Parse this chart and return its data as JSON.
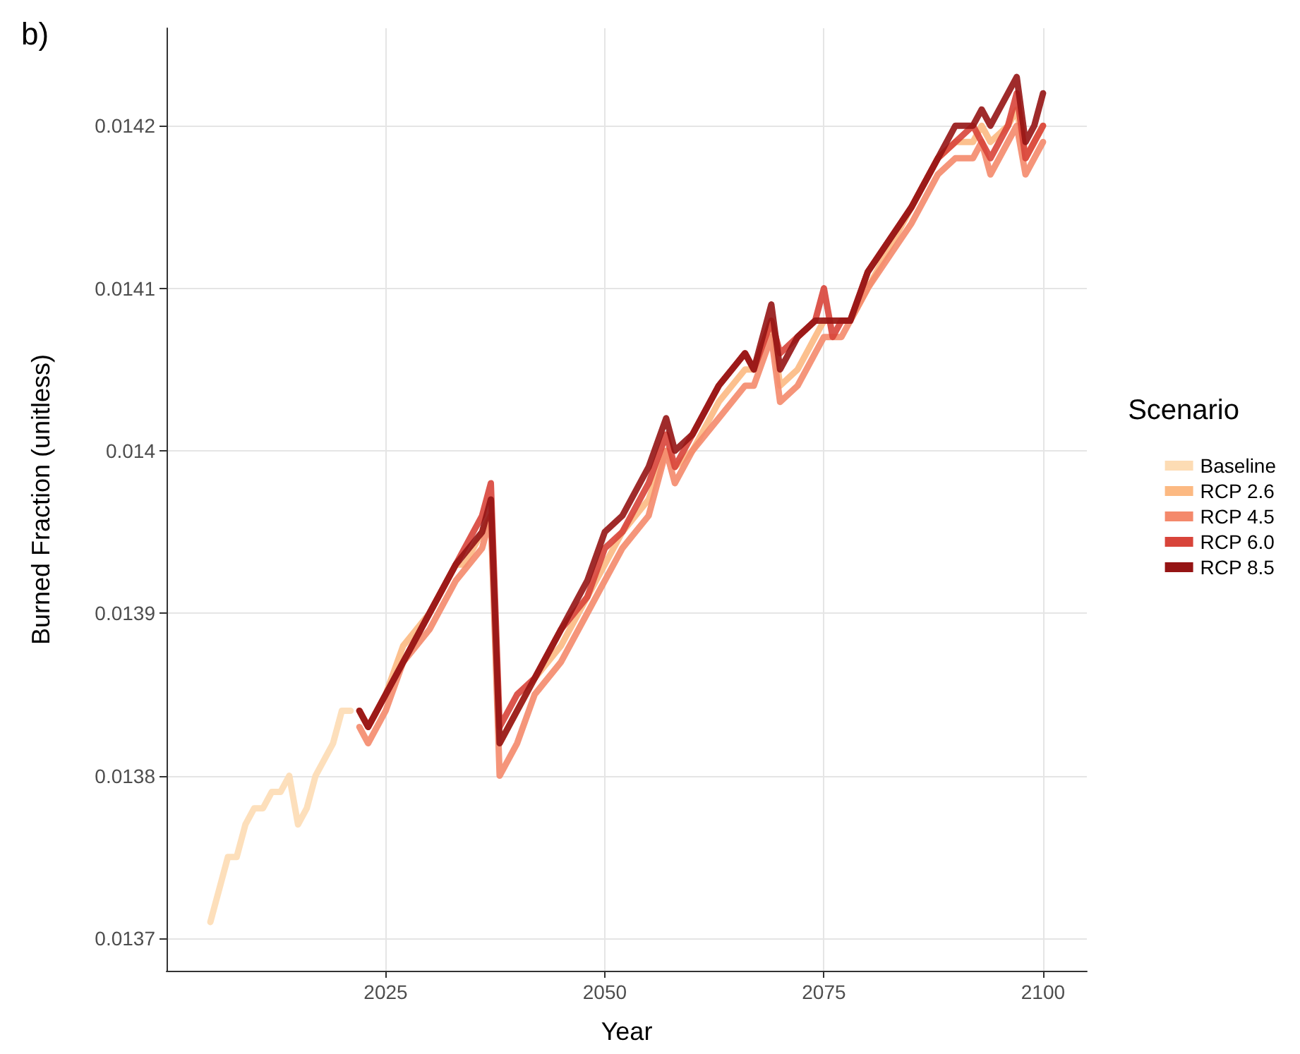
{
  "chart_data": {
    "type": "line",
    "title": "b)",
    "xlabel": "Year",
    "ylabel": "Burned Fraction (unitless)",
    "legend_title": "Scenario",
    "legend": "right",
    "grid": true,
    "marker": "none",
    "line_style": "solid",
    "xlim": [
      2000,
      2105
    ],
    "xticks": [
      2025,
      2050,
      2075,
      2100
    ],
    "ylim": [
      0.01368,
      0.01426
    ],
    "yticks": [
      0.0137,
      0.0138,
      0.0139,
      0.014,
      0.0141,
      0.0142
    ],
    "series": [
      {
        "name": "Baseline",
        "color": "#fddcb4",
        "x": [
          2005,
          2006,
          2007,
          2008,
          2009,
          2010,
          2011,
          2012,
          2013,
          2014,
          2015,
          2016,
          2017,
          2018,
          2019,
          2020,
          2021
        ],
        "values": [
          0.01371,
          0.01373,
          0.01375,
          0.01375,
          0.01377,
          0.01378,
          0.01378,
          0.01379,
          0.01379,
          0.0138,
          0.01377,
          0.01378,
          0.0138,
          0.01381,
          0.01382,
          0.01384,
          0.01384
        ]
      },
      {
        "name": "RCP 2.6",
        "color": "#fcb982",
        "x": [
          2022,
          2023,
          2025,
          2027,
          2030,
          2033,
          2034,
          2036,
          2037,
          2038,
          2040,
          2042,
          2045,
          2048,
          2050,
          2052,
          2055,
          2057,
          2058,
          2060,
          2063,
          2066,
          2067,
          2069,
          2070,
          2072,
          2074,
          2075,
          2076,
          2077,
          2078,
          2080,
          2085,
          2088,
          2090,
          2092,
          2093,
          2094,
          2096,
          2097,
          2098,
          2099,
          2100
        ],
        "values": [
          0.01384,
          0.01383,
          0.01385,
          0.01388,
          0.0139,
          0.01393,
          0.01393,
          0.01395,
          0.01396,
          0.01382,
          0.01384,
          0.01386,
          0.01388,
          0.01391,
          0.01393,
          0.01395,
          0.01397,
          0.014,
          0.01399,
          0.014,
          0.01403,
          0.01405,
          0.01405,
          0.01408,
          0.01404,
          0.01405,
          0.01407,
          0.01408,
          0.01408,
          0.01408,
          0.01408,
          0.0141,
          0.01415,
          0.01418,
          0.01419,
          0.01419,
          0.0142,
          0.01419,
          0.0142,
          0.01421,
          0.01418,
          0.01419,
          0.0142
        ]
      },
      {
        "name": "RCP 4.5",
        "color": "#f4896b",
        "x": [
          2022,
          2023,
          2025,
          2027,
          2030,
          2033,
          2036,
          2037,
          2038,
          2040,
          2042,
          2045,
          2048,
          2050,
          2052,
          2055,
          2057,
          2058,
          2060,
          2063,
          2066,
          2067,
          2069,
          2070,
          2072,
          2074,
          2075,
          2076,
          2077,
          2078,
          2080,
          2085,
          2088,
          2090,
          2092,
          2093,
          2094,
          2096,
          2097,
          2098,
          2099,
          2100
        ],
        "values": [
          0.01383,
          0.01382,
          0.01384,
          0.01387,
          0.01389,
          0.01392,
          0.01394,
          0.01396,
          0.0138,
          0.01382,
          0.01385,
          0.01387,
          0.0139,
          0.01392,
          0.01394,
          0.01396,
          0.014,
          0.01398,
          0.014,
          0.01402,
          0.01404,
          0.01404,
          0.01407,
          0.01403,
          0.01404,
          0.01406,
          0.01407,
          0.01407,
          0.01407,
          0.01408,
          0.0141,
          0.01414,
          0.01417,
          0.01418,
          0.01418,
          0.01419,
          0.01417,
          0.01419,
          0.0142,
          0.01417,
          0.01418,
          0.01419
        ]
      },
      {
        "name": "RCP 6.0",
        "color": "#d8443a",
        "x": [
          2022,
          2023,
          2025,
          2027,
          2030,
          2033,
          2036,
          2037,
          2038,
          2040,
          2042,
          2045,
          2048,
          2050,
          2052,
          2055,
          2057,
          2058,
          2060,
          2063,
          2066,
          2067,
          2069,
          2070,
          2072,
          2074,
          2075,
          2076,
          2077,
          2078,
          2080,
          2085,
          2088,
          2090,
          2092,
          2093,
          2094,
          2096,
          2097,
          2098,
          2099,
          2100
        ],
        "values": [
          0.01384,
          0.01383,
          0.01385,
          0.01387,
          0.0139,
          0.01393,
          0.01396,
          0.01398,
          0.01383,
          0.01385,
          0.01386,
          0.01389,
          0.01391,
          0.01394,
          0.01395,
          0.01398,
          0.01401,
          0.01399,
          0.01401,
          0.01404,
          0.01406,
          0.01405,
          0.01408,
          0.01406,
          0.01407,
          0.01408,
          0.0141,
          0.01407,
          0.01408,
          0.01408,
          0.01411,
          0.01415,
          0.01418,
          0.01419,
          0.0142,
          0.01419,
          0.01418,
          0.0142,
          0.01422,
          0.01418,
          0.01419,
          0.0142
        ]
      },
      {
        "name": "RCP 8.5",
        "color": "#951414",
        "x": [
          2022,
          2023,
          2025,
          2027,
          2030,
          2033,
          2036,
          2037,
          2038,
          2040,
          2042,
          2045,
          2048,
          2050,
          2052,
          2055,
          2057,
          2058,
          2060,
          2063,
          2066,
          2067,
          2069,
          2070,
          2072,
          2074,
          2075,
          2076,
          2077,
          2078,
          2080,
          2085,
          2088,
          2090,
          2092,
          2093,
          2094,
          2096,
          2097,
          2098,
          2099,
          2100
        ],
        "values": [
          0.01384,
          0.01383,
          0.01385,
          0.01387,
          0.0139,
          0.01393,
          0.01395,
          0.01397,
          0.01382,
          0.01384,
          0.01386,
          0.01389,
          0.01392,
          0.01395,
          0.01396,
          0.01399,
          0.01402,
          0.014,
          0.01401,
          0.01404,
          0.01406,
          0.01405,
          0.01409,
          0.01405,
          0.01407,
          0.01408,
          0.01408,
          0.01408,
          0.01408,
          0.01408,
          0.01411,
          0.01415,
          0.01418,
          0.0142,
          0.0142,
          0.01421,
          0.0142,
          0.01422,
          0.01423,
          0.01419,
          0.0142,
          0.01422
        ]
      }
    ]
  }
}
